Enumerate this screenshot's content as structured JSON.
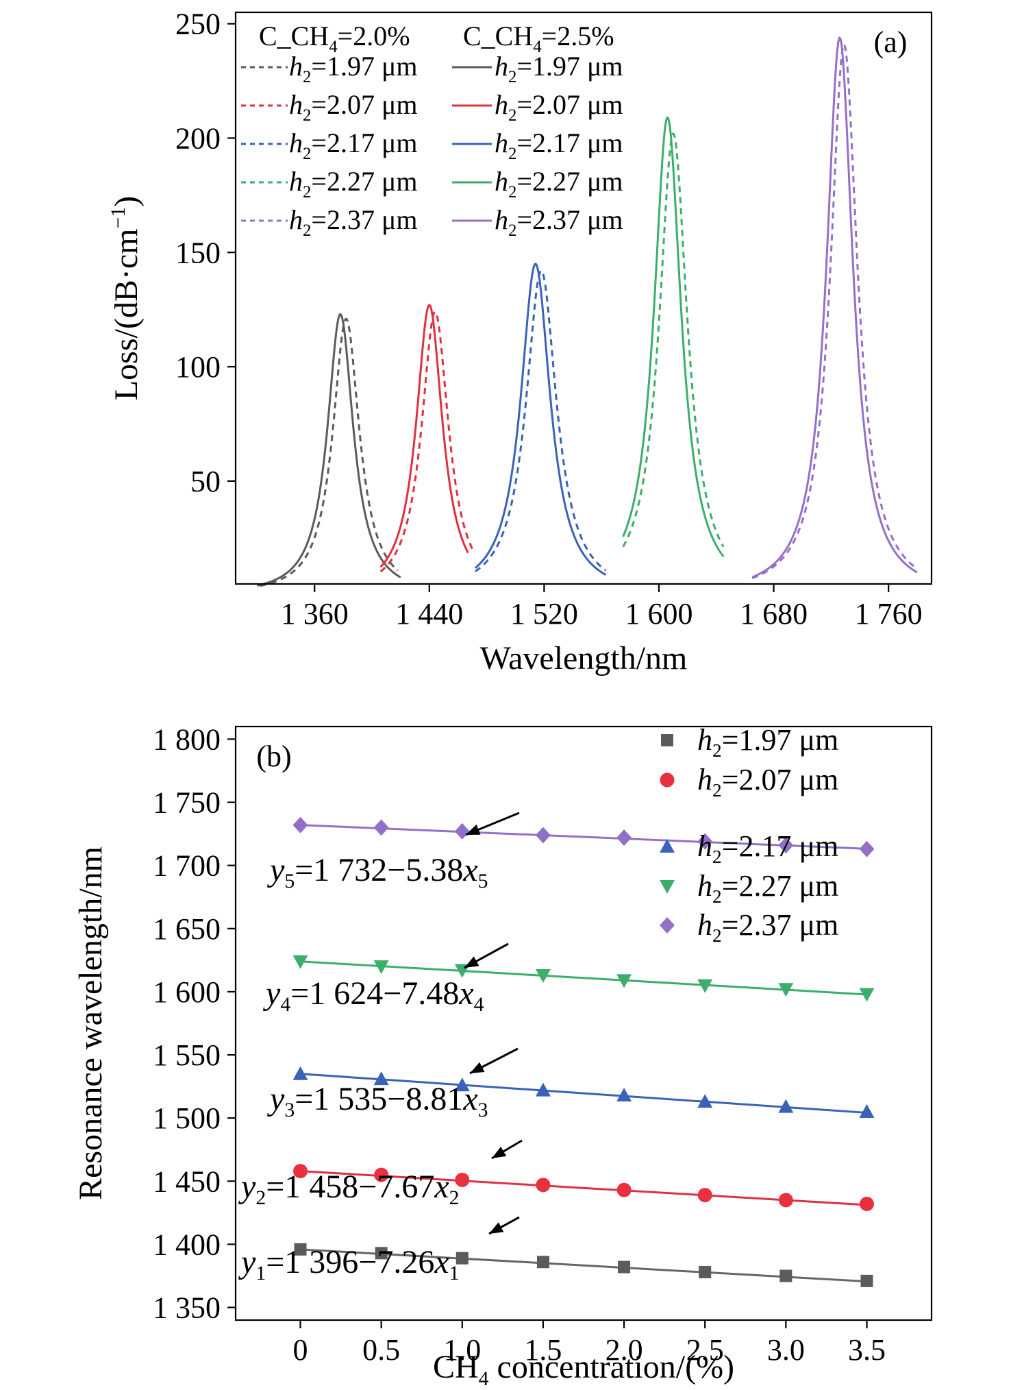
{
  "chart_data": [
    {
      "panel": "(a)",
      "type": "line",
      "xlabel": "Wavelength/nm",
      "ylabel": "Loss/(dB·cm⁻¹)",
      "xlim": [
        1305,
        1790
      ],
      "ylim": [
        5,
        255
      ],
      "xticks": [
        1360,
        1440,
        1520,
        1600,
        1680,
        1760
      ],
      "xtick_labels": [
        "1 360",
        "1 440",
        "1 520",
        "1 600",
        "1 680",
        "1 760"
      ],
      "yticks": [
        50,
        100,
        150,
        200,
        250
      ],
      "ytick_labels": [
        "50",
        "100",
        "150",
        "200",
        "250"
      ],
      "legend_headers": [
        "C_CH₄=2.0%",
        "C_CH₄=2.5%"
      ],
      "legend_position": "top-left",
      "series": [
        {
          "name": "h₂=1.97 μm",
          "concentration": "2.0%",
          "style": "dashed",
          "color": "#5b5b5b",
          "peak_x": 1382,
          "peak_y": 121,
          "x_range": [
            1322,
            1418
          ],
          "hwhm": 11.3
        },
        {
          "name": "h₂=1.97 μm",
          "concentration": "2.5%",
          "style": "solid",
          "color": "#5b5b5b",
          "peak_x": 1378,
          "peak_y": 123,
          "x_range": [
            1320,
            1420
          ],
          "hwhm": 11.0
        },
        {
          "name": "h₂=2.07 μm",
          "concentration": "2.0%",
          "style": "dashed",
          "color": "#e03040",
          "peak_x": 1444,
          "peak_y": 124,
          "x_range": [
            1406,
            1470
          ],
          "hwhm": 11.5
        },
        {
          "name": "h₂=2.07 μm",
          "concentration": "2.5%",
          "style": "solid",
          "color": "#e03040",
          "peak_x": 1440,
          "peak_y": 127,
          "x_range": [
            1406,
            1467
          ],
          "hwhm": 11.2
        },
        {
          "name": "h₂=2.17 μm",
          "concentration": "2.0%",
          "style": "dashed",
          "color": "#3a62b8",
          "peak_x": 1518,
          "peak_y": 142,
          "x_range": [
            1472,
            1563
          ],
          "hwhm": 13.0
        },
        {
          "name": "h₂=2.17 μm",
          "concentration": "2.5%",
          "style": "solid",
          "color": "#3a62b8",
          "peak_x": 1514,
          "peak_y": 145,
          "x_range": [
            1472,
            1563
          ],
          "hwhm": 12.6
        },
        {
          "name": "h₂=2.27 μm",
          "concentration": "2.0%",
          "style": "dashed",
          "color": "#3aae6a",
          "peak_x": 1610,
          "peak_y": 202,
          "x_range": [
            1575,
            1645
          ],
          "hwhm": 12.0
        },
        {
          "name": "h₂=2.27 μm",
          "concentration": "2.5%",
          "style": "solid",
          "color": "#3aae6a",
          "peak_x": 1606,
          "peak_y": 209,
          "x_range": [
            1575,
            1645
          ],
          "hwhm": 11.6
        },
        {
          "name": "h₂=2.37 μm",
          "concentration": "2.0%",
          "style": "dashed",
          "color": "#9370c8",
          "peak_x": 1729,
          "peak_y": 241,
          "x_range": [
            1665,
            1780
          ],
          "hwhm": 11.5
        },
        {
          "name": "h₂=2.37 μm",
          "concentration": "2.5%",
          "style": "solid",
          "color": "#9370c8",
          "peak_x": 1726,
          "peak_y": 244,
          "x_range": [
            1665,
            1780
          ],
          "hwhm": 11.2
        }
      ]
    },
    {
      "panel": "(b)",
      "type": "scatter",
      "xlabel": "CH₄ concentration/(%)",
      "ylabel": "Resonance wavelength/nm",
      "xlim": [
        -0.4,
        3.9
      ],
      "ylim": [
        1340,
        1810
      ],
      "xticks": [
        0,
        0.5,
        1.0,
        1.5,
        2.0,
        2.5,
        3.0,
        3.5
      ],
      "xtick_labels": [
        "0",
        "0.5",
        "1.0",
        "1.5",
        "2.0",
        "2.5",
        "3.0",
        "3.5"
      ],
      "yticks": [
        1350,
        1400,
        1450,
        1500,
        1550,
        1600,
        1650,
        1700,
        1750,
        1800
      ],
      "ytick_labels": [
        "1 350",
        "1 400",
        "1 450",
        "1 500",
        "1 550",
        "1 600",
        "1 650",
        "1 700",
        "1 750",
        "1 800"
      ],
      "legend_position": "top-right",
      "x": [
        0,
        0.5,
        1.0,
        1.5,
        2.0,
        2.5,
        3.0,
        3.5
      ],
      "series": [
        {
          "name": "h₂=1.97 μm",
          "marker": "square",
          "color": "#5b5b5b",
          "line_color": "#666666",
          "values": [
            1396,
            1393,
            1389,
            1386,
            1382,
            1378,
            1375,
            1371
          ],
          "fit": {
            "intercept": 1396,
            "slope": -7.26
          },
          "equation_label": "y₁=1 396−7.26x₁"
        },
        {
          "name": "h₂=2.07 μm",
          "marker": "circle",
          "color": "#e8303e",
          "line_color": "#e03040",
          "values": [
            1458,
            1455,
            1451,
            1447,
            1443,
            1439,
            1435,
            1432
          ],
          "fit": {
            "intercept": 1458,
            "slope": -7.67
          },
          "equation_label": "y₂=1 458−7.67x₂"
        },
        {
          "name": "h₂=2.17 μm",
          "marker": "triangle-up",
          "color": "#3a62b8",
          "line_color": "#3a62b8",
          "values": [
            1535,
            1531,
            1526,
            1522,
            1518,
            1513,
            1509,
            1505
          ],
          "fit": {
            "intercept": 1535,
            "slope": -8.81
          },
          "equation_label": "y₃=1 535−8.81x₃"
        },
        {
          "name": "h₂=2.27 μm",
          "marker": "triangle-down",
          "color": "#3aae6a",
          "line_color": "#3aae6a",
          "values": [
            1624,
            1620,
            1617,
            1613,
            1609,
            1605,
            1602,
            1598
          ],
          "fit": {
            "intercept": 1624,
            "slope": -7.48
          },
          "equation_label": "y₄=1 624−7.48x₄"
        },
        {
          "name": "h₂=2.37 μm",
          "marker": "diamond",
          "color": "#9370c8",
          "line_color": "#9370c8",
          "values": [
            1732,
            1730,
            1727,
            1724,
            1722,
            1719,
            1716,
            1713
          ],
          "fit": {
            "intercept": 1732,
            "slope": -5.38
          },
          "equation_label": "y₅=1 732−5.38x₅"
        }
      ]
    }
  ]
}
